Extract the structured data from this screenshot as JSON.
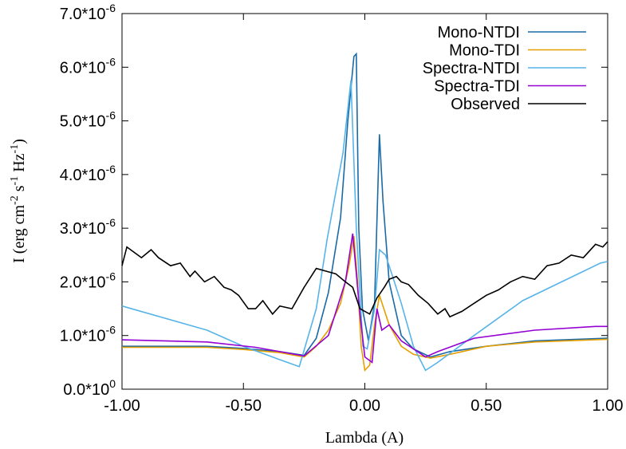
{
  "chart_data": {
    "type": "line",
    "xlabel": "Lambda (A)",
    "ylabel": [
      {
        "text": "I (erg cm"
      },
      {
        "sup": "-2"
      },
      {
        "text": " s"
      },
      {
        "sup": "-1"
      },
      {
        "text": " Hz"
      },
      {
        "sup": "-1"
      },
      {
        "text": ")"
      }
    ],
    "xlim": [
      -1,
      1
    ],
    "ylim": [
      0,
      7e-06
    ],
    "xticks": [
      {
        "value": -1,
        "label": "-1.00"
      },
      {
        "value": -0.5,
        "label": "-0.50"
      },
      {
        "value": 0,
        "label": "0.00"
      },
      {
        "value": 0.5,
        "label": "0.50"
      },
      {
        "value": 1,
        "label": "1.00"
      }
    ],
    "yticks": [
      {
        "value": 0,
        "label": "0.0*10",
        "exponent": "0"
      },
      {
        "value": 1e-06,
        "label": "1.0*10",
        "exponent": "-6"
      },
      {
        "value": 2e-06,
        "label": "2.0*10",
        "exponent": "-6"
      },
      {
        "value": 3e-06,
        "label": "3.0*10",
        "exponent": "-6"
      },
      {
        "value": 4e-06,
        "label": "4.0*10",
        "exponent": "-6"
      },
      {
        "value": 5e-06,
        "label": "5.0*10",
        "exponent": "-6"
      },
      {
        "value": 6e-06,
        "label": "6.0*10",
        "exponent": "-6"
      },
      {
        "value": 7e-06,
        "label": "7.0*10",
        "exponent": "-6"
      }
    ],
    "legend": "top-right",
    "series": [
      {
        "name": "Mono-NTDI",
        "color": "#1a6aa6",
        "x": [
          -1,
          -0.65,
          -0.5,
          -0.35,
          -0.25,
          -0.2,
          -0.15,
          -0.1,
          -0.07,
          -0.045,
          -0.035,
          -0.025,
          -0.01,
          0.015,
          0.04,
          0.06,
          0.075,
          0.1,
          0.15,
          0.2,
          0.27,
          0.35,
          0.5,
          0.7,
          1.0
        ],
        "values": [
          8e-07,
          8e-07,
          7.6e-07,
          7e-07,
          6.3e-07,
          9.5e-07,
          1.8e-06,
          3.2e-06,
          5e-06,
          6.2e-06,
          6.25e-06,
          3e-06,
          1.5e-06,
          9e-07,
          1.6e-06,
          4.75e-06,
          3.5e-06,
          2e-06,
          1e-06,
          7.5e-07,
          6e-07,
          7e-07,
          8e-07,
          9e-07,
          9.5e-07
        ]
      },
      {
        "name": "Mono-TDI",
        "color": "#e69f00",
        "x": [
          -1,
          -0.65,
          -0.5,
          -0.35,
          -0.25,
          -0.2,
          -0.15,
          -0.1,
          -0.065,
          -0.045,
          -0.03,
          -0.015,
          0.0,
          0.02,
          0.04,
          0.06,
          0.1,
          0.15,
          0.2,
          0.27,
          0.35,
          0.5,
          0.7,
          1.0
        ],
        "values": [
          7.8e-07,
          7.8e-07,
          7.4e-07,
          6.8e-07,
          6e-07,
          8e-07,
          1.1e-06,
          1.6e-06,
          2.3e-06,
          2.85e-06,
          2e-06,
          8e-07,
          3.5e-07,
          4.5e-07,
          1.2e-06,
          1.75e-06,
          1.2e-06,
          8e-07,
          6.5e-07,
          5.8e-07,
          6.5e-07,
          8e-07,
          8.8e-07,
          9.3e-07
        ]
      },
      {
        "name": "Spectra-NTDI",
        "color": "#56b4e9",
        "x": [
          -1,
          -0.65,
          -0.5,
          -0.35,
          -0.27,
          -0.2,
          -0.155,
          -0.09,
          -0.057,
          -0.035,
          -0.008,
          0.01,
          0.04,
          0.06,
          0.085,
          0.1,
          0.15,
          0.2,
          0.25,
          0.3,
          0.45,
          0.65,
          0.97,
          1.0
        ],
        "values": [
          1.55e-06,
          1.1e-06,
          8e-07,
          5.5e-07,
          4.2e-07,
          1.5e-06,
          2.8e-06,
          4.4e-06,
          5.76e-06,
          3e-06,
          8e-07,
          7.5e-07,
          1.5e-06,
          2.6e-06,
          2.5e-06,
          2.3e-06,
          1.6e-06,
          8e-07,
          3.5e-07,
          5e-07,
          1e-06,
          1.65e-06,
          2.35e-06,
          2.38e-06
        ]
      },
      {
        "name": "Spectra-TDI",
        "color": "#9400d3",
        "x": [
          -1,
          -0.65,
          -0.45,
          -0.25,
          -0.15,
          -0.08,
          -0.05,
          -0.02,
          0.0,
          0.03,
          0.05,
          0.07,
          0.1,
          0.15,
          0.25,
          0.3,
          0.45,
          0.7,
          0.95,
          1.0
        ],
        "values": [
          9.2e-07,
          8.8e-07,
          7.8e-07,
          6.2e-07,
          1e-06,
          2e-06,
          2.9e-06,
          1.4e-06,
          6e-07,
          5e-07,
          1.5e-06,
          1.1e-06,
          1.2e-06,
          9e-07,
          6e-07,
          7e-07,
          9.5e-07,
          1.1e-06,
          1.17e-06,
          1.17e-06
        ]
      },
      {
        "name": "Observed",
        "color": "#000000",
        "x": [
          -1,
          -0.98,
          -0.95,
          -0.92,
          -0.88,
          -0.85,
          -0.8,
          -0.76,
          -0.72,
          -0.7,
          -0.66,
          -0.62,
          -0.58,
          -0.55,
          -0.52,
          -0.48,
          -0.45,
          -0.42,
          -0.38,
          -0.35,
          -0.3,
          -0.25,
          -0.2,
          -0.16,
          -0.12,
          -0.08,
          -0.05,
          -0.02,
          0.0,
          0.02,
          0.05,
          0.08,
          0.1,
          0.13,
          0.15,
          0.18,
          0.22,
          0.26,
          0.3,
          0.33,
          0.35,
          0.4,
          0.45,
          0.5,
          0.55,
          0.6,
          0.65,
          0.7,
          0.75,
          0.8,
          0.85,
          0.9,
          0.95,
          0.98,
          1.0
        ],
        "values": [
          2.3e-06,
          2.65e-06,
          2.55e-06,
          2.45e-06,
          2.6e-06,
          2.45e-06,
          2.3e-06,
          2.35e-06,
          2.1e-06,
          2.2e-06,
          2e-06,
          2.1e-06,
          1.9e-06,
          1.85e-06,
          1.75e-06,
          1.5e-06,
          1.5e-06,
          1.65e-06,
          1.4e-06,
          1.55e-06,
          1.5e-06,
          1.9e-06,
          2.25e-06,
          2.2e-06,
          2.15e-06,
          2e-06,
          1.9e-06,
          1.5e-06,
          1.45e-06,
          1.4e-06,
          1.7e-06,
          1.9e-06,
          2.05e-06,
          2.1e-06,
          2e-06,
          1.95e-06,
          1.75e-06,
          1.6e-06,
          1.4e-06,
          1.5e-06,
          1.35e-06,
          1.45e-06,
          1.6e-06,
          1.75e-06,
          1.85e-06,
          2e-06,
          2.1e-06,
          2.05e-06,
          2.3e-06,
          2.35e-06,
          2.5e-06,
          2.45e-06,
          2.7e-06,
          2.65e-06,
          2.75e-06
        ]
      }
    ]
  }
}
